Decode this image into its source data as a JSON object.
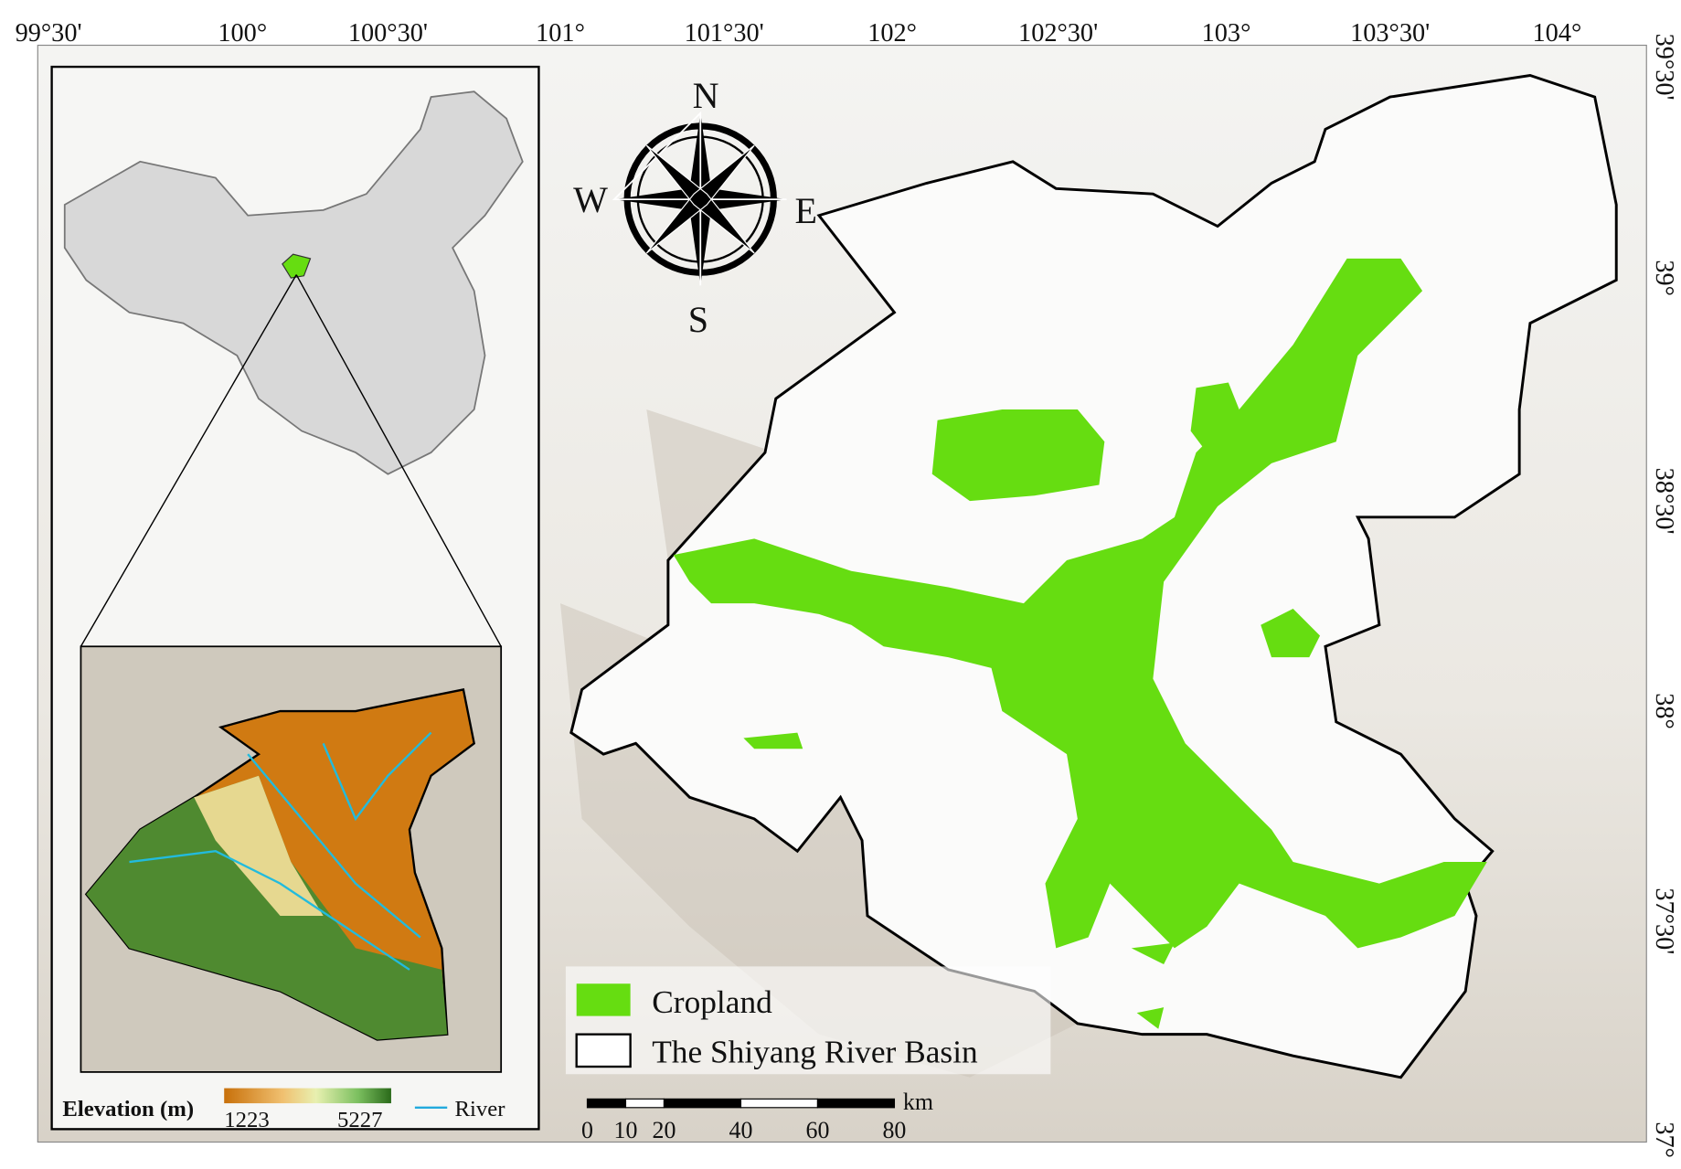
{
  "longitude_labels": [
    "99°30'",
    "100°",
    "100°30'",
    "101°",
    "101°30'",
    "102°",
    "102°30'",
    "103°",
    "103°30'",
    "104°"
  ],
  "latitude_labels": [
    "39°30'",
    "39°",
    "38°30'",
    "38°",
    "37°30'",
    "37°"
  ],
  "compass": {
    "north": "N",
    "south": "S",
    "east": "E",
    "west": "W"
  },
  "legend": {
    "cropland": "Cropland",
    "basin": "The Shiyang River Basin"
  },
  "scale_bar": {
    "unit": "km",
    "ticks": [
      0,
      10,
      20,
      40,
      60,
      80
    ]
  },
  "inset": {
    "elevation_title": "Elevation (m)",
    "elevation_min": 1223,
    "elevation_max": 5227,
    "river": "River"
  }
}
